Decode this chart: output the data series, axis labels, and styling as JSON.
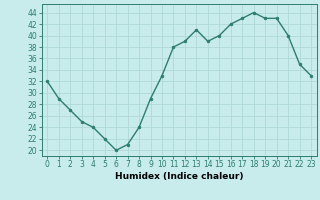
{
  "x": [
    0,
    1,
    2,
    3,
    4,
    5,
    6,
    7,
    8,
    9,
    10,
    11,
    12,
    13,
    14,
    15,
    16,
    17,
    18,
    19,
    20,
    21,
    22,
    23
  ],
  "y": [
    32,
    29,
    27,
    25,
    24,
    22,
    20,
    21,
    24,
    29,
    33,
    38,
    39,
    41,
    39,
    40,
    42,
    43,
    44,
    43,
    43,
    40,
    35,
    33
  ],
  "line_color": "#2e7d6e",
  "marker": "o",
  "marker_size": 2.0,
  "bg_color": "#c8ecec",
  "grid_color": "#b0d8d8",
  "xlabel": "Humidex (Indice chaleur)",
  "ylabel_ticks": [
    20,
    22,
    24,
    26,
    28,
    30,
    32,
    34,
    36,
    38,
    40,
    42,
    44
  ],
  "ylim": [
    19,
    45.5
  ],
  "xlim": [
    -0.5,
    23.5
  ],
  "xlabel_fontsize": 6.5,
  "tick_fontsize": 5.5,
  "linewidth": 1.0
}
